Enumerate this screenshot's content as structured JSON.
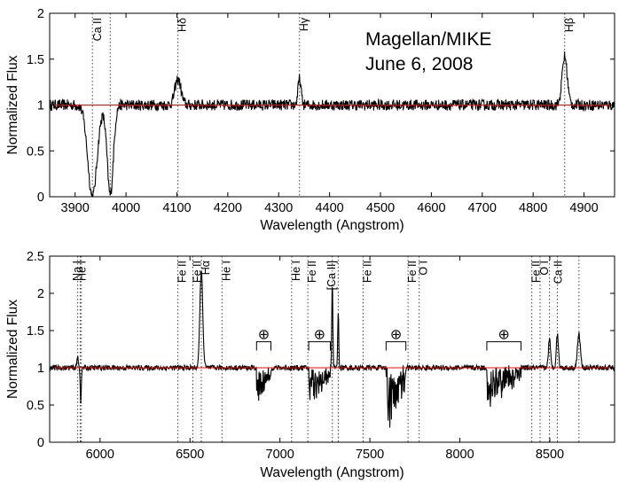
{
  "chart_data": [
    {
      "type": "line",
      "title": "",
      "xlabel": "Wavelength  (Angstrom)",
      "ylabel": "Normalized Flux",
      "xlim": [
        3850,
        4960
      ],
      "ylim": [
        0,
        2
      ],
      "xticks": [
        3900,
        4000,
        4100,
        4200,
        4300,
        4400,
        4500,
        4600,
        4700,
        4800,
        4900
      ],
      "yticks": [
        0,
        0.5,
        1,
        1.5,
        2
      ],
      "annotation": {
        "line1": "Magellan/MIKE",
        "line2": "June 6, 2008"
      },
      "line_markers": [
        {
          "label": "Ca II",
          "x": [
            3934,
            3969
          ]
        },
        {
          "label": "Hδ",
          "x": [
            4102
          ]
        },
        {
          "label": "Hγ",
          "x": [
            4341
          ]
        },
        {
          "label": "Hβ",
          "x": [
            4862
          ]
        }
      ],
      "continuum": 1.0,
      "series": [
        {
          "name": "spectrum",
          "color": "#000000",
          "features": [
            {
              "x": 3934,
              "depth": 1.0,
              "width": 9
            },
            {
              "x": 3969,
              "depth": 0.98,
              "width": 6
            },
            {
              "x": 4102,
              "height": 0.28,
              "width": 6
            },
            {
              "x": 4341,
              "height": 0.28,
              "width": 3
            },
            {
              "x": 4862,
              "height": 0.53,
              "width": 5
            }
          ]
        },
        {
          "name": "continuum fit",
          "color": "#ff0000"
        }
      ]
    },
    {
      "type": "line",
      "title": "",
      "xlabel": "Wavelength  (Angstrom)",
      "ylabel": "Normalized Flux",
      "xlim": [
        5720,
        8860
      ],
      "ylim": [
        0,
        2.5
      ],
      "xticks": [
        6000,
        6500,
        7000,
        7500,
        8000,
        8500
      ],
      "yticks": [
        0,
        0.5,
        1,
        1.5,
        2,
        2.5
      ],
      "line_markers": [
        {
          "label": "He I",
          "x": [
            5876
          ]
        },
        {
          "label": "Na I",
          "x": [
            5890,
            5896
          ]
        },
        {
          "label": "Fe II",
          "x": [
            6432
          ]
        },
        {
          "label": "Fe II",
          "x": [
            6516
          ]
        },
        {
          "label": "Hα",
          "x": [
            6563
          ]
        },
        {
          "label": "He I",
          "x": [
            6678
          ]
        },
        {
          "label": "He I",
          "x": [
            7065
          ]
        },
        {
          "label": "Fe II",
          "x": [
            7155
          ]
        },
        {
          "label": "[Ca II]",
          "x": [
            7291,
            7324
          ]
        },
        {
          "label": "Fe II",
          "x": [
            7462
          ]
        },
        {
          "label": "Fe II",
          "x": [
            7712
          ]
        },
        {
          "label": "O I",
          "x": [
            7774
          ]
        },
        {
          "label": "Fe II",
          "x": [
            8400
          ]
        },
        {
          "label": "O I",
          "x": [
            8446
          ]
        },
        {
          "label": "Ca II",
          "x": [
            8498,
            8542,
            8662
          ]
        }
      ],
      "telluric_bands": [
        {
          "label": "⊕",
          "x": [
            6870,
            6950
          ]
        },
        {
          "label": "⊕",
          "x": [
            7160,
            7280
          ]
        },
        {
          "label": "⊕",
          "x": [
            7590,
            7700
          ]
        },
        {
          "label": "⊕",
          "x": [
            8150,
            8340
          ]
        }
      ],
      "continuum": 1.0,
      "series": [
        {
          "name": "spectrum",
          "color": "#000000",
          "features": [
            {
              "x": 5876,
              "height": 0.15,
              "width": 4
            },
            {
              "x": 5893,
              "depth": 0.45,
              "width": 3
            },
            {
              "x": 6563,
              "height": 1.3,
              "width": 8
            },
            {
              "x": 7291,
              "height": 1.15,
              "width": 3
            },
            {
              "x": 7324,
              "height": 0.75,
              "width": 3
            },
            {
              "x": 8498,
              "height": 0.38,
              "width": 6
            },
            {
              "x": 8542,
              "height": 0.45,
              "width": 6
            },
            {
              "x": 8662,
              "height": 0.45,
              "width": 8
            }
          ]
        },
        {
          "name": "continuum fit",
          "color": "#ff0000"
        }
      ]
    }
  ]
}
